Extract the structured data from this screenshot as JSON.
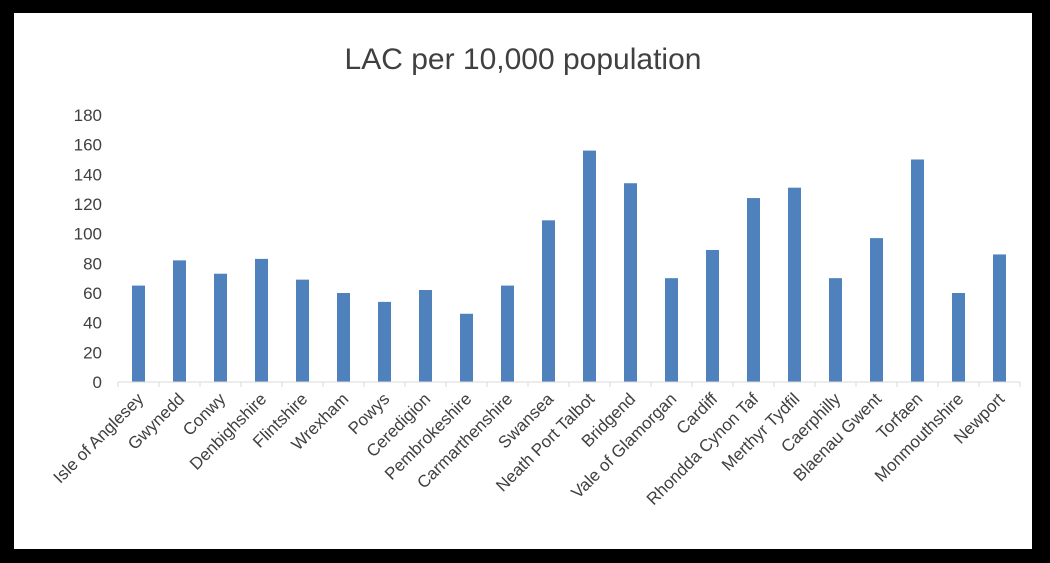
{
  "chart_data": {
    "type": "bar",
    "title": "LAC per 10,000 population",
    "xlabel": "",
    "ylabel": "",
    "ylim": [
      0,
      180
    ],
    "yticks": [
      0,
      20,
      40,
      60,
      80,
      100,
      120,
      140,
      160,
      180
    ],
    "grid": false,
    "legend": "none",
    "bar_color": "#4f81bd",
    "categories": [
      "Isle of Anglesey",
      "Gwynedd",
      "Conwy",
      "Denbighshire",
      "Flintshire",
      "Wrexham",
      "Powys",
      "Ceredigion",
      "Pembrokeshire",
      "Carmarthenshire",
      "Swansea",
      "Neath Port Talbot",
      "Bridgend",
      "Vale of Glamorgan",
      "Cardiff",
      "Rhondda Cynon Taf",
      "Merthyr Tydfil",
      "Caerphilly",
      "Blaenau Gwent",
      "Torfaen",
      "Monmouthshire",
      "Newport"
    ],
    "values": [
      65,
      82,
      73,
      83,
      69,
      60,
      54,
      62,
      46,
      65,
      109,
      156,
      134,
      70,
      89,
      124,
      131,
      70,
      97,
      150,
      60,
      86
    ]
  }
}
